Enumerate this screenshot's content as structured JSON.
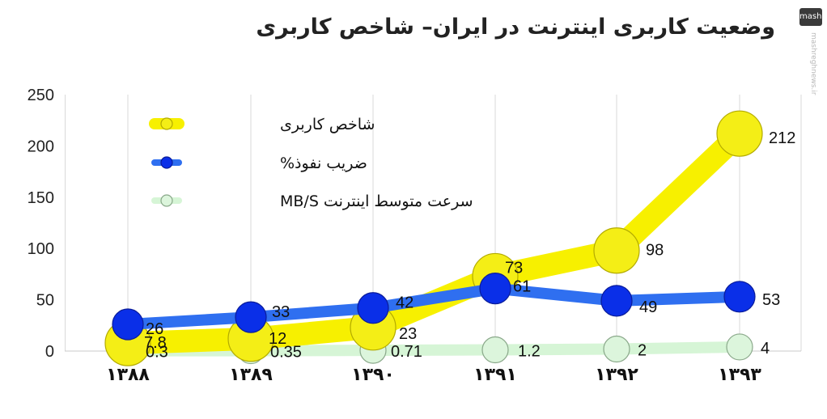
{
  "title": "وضعیت کاربری اینترنت در ایران– شاخص کاربری",
  "watermark": {
    "logo": "mashregh",
    "text": "mashreghnews.ir"
  },
  "chart_data": {
    "type": "line",
    "categories": [
      "۱۳۸۸",
      "۱۳۸۹",
      "۱۳۹۰",
      "۱۳۹۱",
      "۱۳۹۲",
      "۱۳۹۳"
    ],
    "ylim": [
      0,
      250
    ],
    "yticks": [
      "0",
      "50",
      "100",
      "150",
      "200",
      "250"
    ],
    "ytick_values": [
      0,
      50,
      100,
      150,
      200,
      250
    ],
    "grid": "vertical",
    "legend_placement": "top-left",
    "series": [
      {
        "name": "شاخص کاربری",
        "values": [
          7.8,
          12,
          23,
          73,
          98,
          212
        ],
        "labels": [
          "7.8",
          "12",
          "23",
          "73",
          "98",
          "212"
        ],
        "line_color": "#f7f000",
        "marker_color": "#f4ee16",
        "marker_stroke": "#b3ab00"
      },
      {
        "name": "ضریب نفوذ%",
        "values": [
          26,
          33,
          42,
          61,
          49,
          53
        ],
        "labels": [
          "26",
          "33",
          "42",
          "61",
          "49",
          "53"
        ],
        "line_color": "#2f6ff0",
        "marker_color": "#0a2fe8",
        "marker_stroke": "#0a1c9a"
      },
      {
        "name": "سرعت متوسط اینترنت MB/S",
        "values": [
          0.3,
          0.35,
          0.71,
          1.2,
          2,
          4
        ],
        "labels": [
          "0.3",
          "0.35",
          "0.71",
          "1.2",
          "2",
          "4"
        ],
        "line_color": "#d6f5d6",
        "marker_color": "#dcf5dc",
        "marker_stroke": "#8aa88a"
      }
    ]
  }
}
